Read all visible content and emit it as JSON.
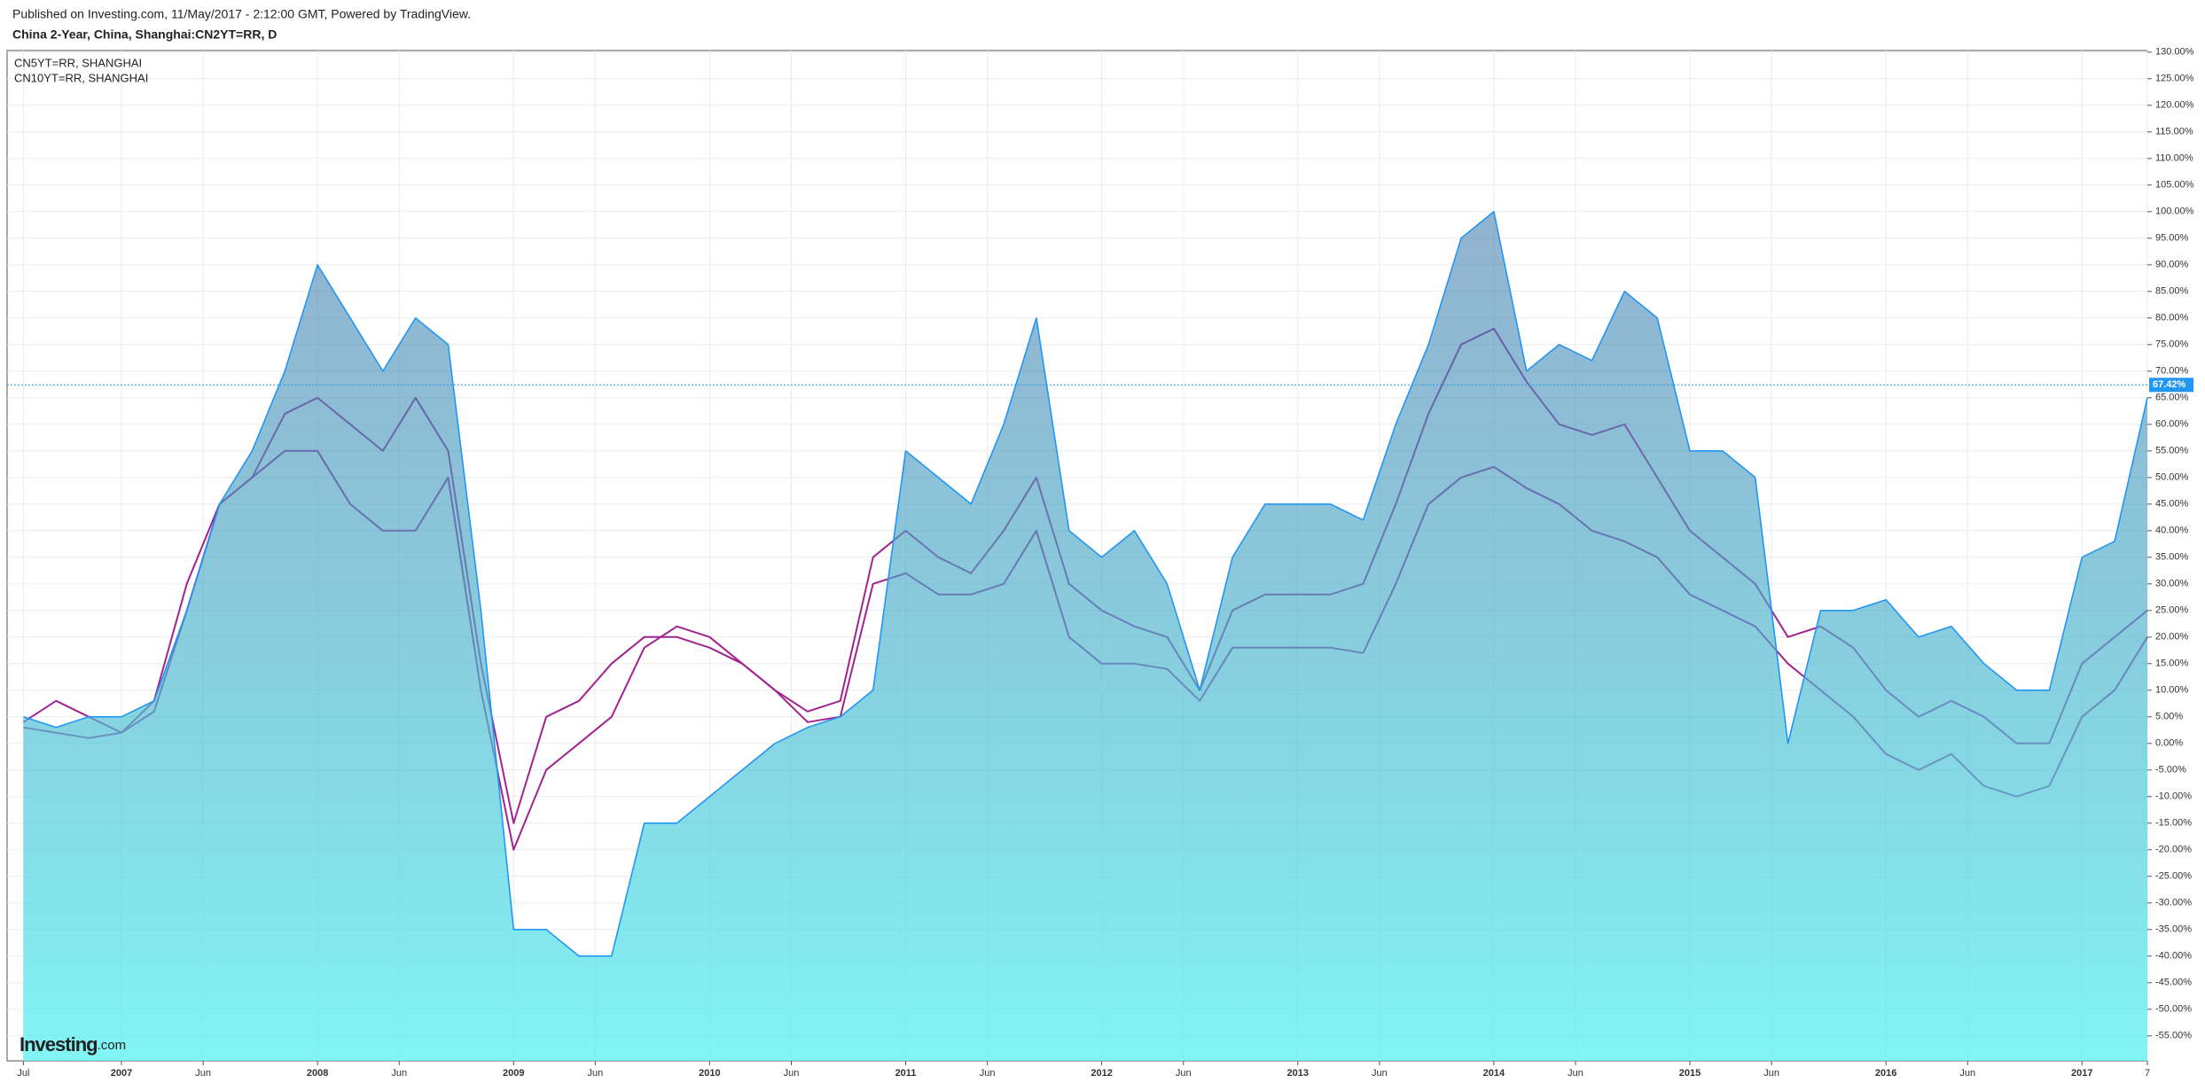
{
  "chart_data": {
    "type": "area",
    "source": "Published on Investing.com, 11/May/2017 - 2:12:00 GMT, Powered by TradingView.",
    "title": "China 2-Year, China, Shanghai:CN2YT=RR, D",
    "x": [
      "2006-07",
      "2006-09",
      "2006-11",
      "2007-01",
      "2007-03",
      "2007-05",
      "2007-07",
      "2007-09",
      "2007-11",
      "2008-01",
      "2008-03",
      "2008-05",
      "2008-07",
      "2008-09",
      "2008-11",
      "2009-01",
      "2009-03",
      "2009-05",
      "2009-07",
      "2009-09",
      "2009-11",
      "2010-01",
      "2010-03",
      "2010-05",
      "2010-07",
      "2010-09",
      "2010-11",
      "2011-01",
      "2011-03",
      "2011-05",
      "2011-07",
      "2011-09",
      "2011-11",
      "2012-01",
      "2012-03",
      "2012-05",
      "2012-07",
      "2012-09",
      "2012-11",
      "2013-01",
      "2013-03",
      "2013-05",
      "2013-07",
      "2013-09",
      "2013-11",
      "2014-01",
      "2014-03",
      "2014-05",
      "2014-07",
      "2014-09",
      "2014-11",
      "2015-01",
      "2015-03",
      "2015-05",
      "2015-07",
      "2015-09",
      "2015-11",
      "2016-01",
      "2016-03",
      "2016-05",
      "2016-07",
      "2016-09",
      "2016-11",
      "2017-01",
      "2017-03",
      "2017-05"
    ],
    "series": [
      {
        "color": "#2196f3",
        "values": [
          5,
          3,
          5,
          5,
          8,
          25,
          45,
          55,
          70,
          90,
          80,
          70,
          80,
          75,
          25,
          -35,
          -35,
          -40,
          -40,
          -15,
          -15,
          -10,
          -5,
          0,
          3,
          5,
          10,
          55,
          50,
          45,
          60,
          80,
          40,
          35,
          40,
          30,
          10,
          35,
          45,
          45,
          45,
          42,
          60,
          75,
          95,
          100,
          70,
          75,
          72,
          85,
          80,
          55,
          55,
          50,
          0,
          25,
          25,
          27,
          20,
          22,
          15,
          10,
          10,
          35,
          38,
          65
        ]
      },
      {
        "name": "CN5YT=RR, SHANGHAI",
        "color": "#a0248f",
        "values": [
          3,
          2,
          1,
          2,
          8,
          30,
          45,
          50,
          62,
          65,
          60,
          55,
          65,
          55,
          15,
          -15,
          5,
          8,
          15,
          20,
          20,
          18,
          15,
          10,
          6,
          8,
          35,
          40,
          35,
          32,
          40,
          50,
          30,
          25,
          22,
          20,
          10,
          25,
          28,
          28,
          28,
          30,
          45,
          62,
          75,
          78,
          68,
          60,
          58,
          60,
          50,
          40,
          35,
          30,
          20,
          22,
          18,
          10,
          5,
          8,
          5,
          0,
          0,
          15,
          20,
          25
        ]
      },
      {
        "name": "CN10YT=RR, SHANGHAI",
        "color": "#a0248f",
        "values": [
          4,
          8,
          5,
          2,
          6,
          25,
          45,
          50,
          55,
          55,
          45,
          40,
          40,
          50,
          10,
          -20,
          -5,
          0,
          5,
          18,
          22,
          20,
          15,
          10,
          4,
          5,
          30,
          32,
          28,
          28,
          30,
          40,
          20,
          15,
          15,
          14,
          8,
          18,
          18,
          18,
          18,
          17,
          30,
          45,
          50,
          52,
          48,
          45,
          40,
          38,
          35,
          28,
          25,
          22,
          15,
          10,
          5,
          -2,
          -5,
          -2,
          -8,
          -10,
          -8,
          5,
          10,
          20
        ]
      }
    ],
    "xlim": [
      "2006-06",
      "2017-05"
    ],
    "xticks": [
      {
        "value": "2006-07",
        "label": "Jul"
      },
      {
        "value": "2007-01",
        "label": "2007"
      },
      {
        "value": "2007-06",
        "label": "Jun"
      },
      {
        "value": "2008-01",
        "label": "2008"
      },
      {
        "value": "2008-06",
        "label": "Jun"
      },
      {
        "value": "2009-01",
        "label": "2009"
      },
      {
        "value": "2009-06",
        "label": "Jun"
      },
      {
        "value": "2010-01",
        "label": "2010"
      },
      {
        "value": "2010-06",
        "label": "Jun"
      },
      {
        "value": "2011-01",
        "label": "2011"
      },
      {
        "value": "2011-06",
        "label": "Jun"
      },
      {
        "value": "2012-01",
        "label": "2012"
      },
      {
        "value": "2012-06",
        "label": "Jun"
      },
      {
        "value": "2013-01",
        "label": "2013"
      },
      {
        "value": "2013-06",
        "label": "Jun"
      },
      {
        "value": "2014-01",
        "label": "2014"
      },
      {
        "value": "2014-06",
        "label": "Jun"
      },
      {
        "value": "2015-01",
        "label": "2015"
      },
      {
        "value": "2015-06",
        "label": "Jun"
      },
      {
        "value": "2016-01",
        "label": "2016"
      },
      {
        "value": "2016-06",
        "label": "Jun"
      },
      {
        "value": "2017-01",
        "label": "2017"
      },
      {
        "value": "2017-05",
        "label": "7"
      }
    ],
    "ylim": [
      -59.7,
      130.3
    ],
    "yticks": [
      {
        "value": -55,
        "label": "-55.00%"
      },
      {
        "value": -50,
        "label": "-50.00%"
      },
      {
        "value": -45,
        "label": "-45.00%"
      },
      {
        "value": -40,
        "label": "-40.00%"
      },
      {
        "value": -35,
        "label": "-35.00%"
      },
      {
        "value": -30,
        "label": "-30.00%"
      },
      {
        "value": -25,
        "label": "-25.00%"
      },
      {
        "value": -20,
        "label": "-20.00%"
      },
      {
        "value": -15,
        "label": "-15.00%"
      },
      {
        "value": -10,
        "label": "-10.00%"
      },
      {
        "value": -5,
        "label": "-5.00%"
      },
      {
        "value": 0,
        "label": "0.00%"
      },
      {
        "value": 5,
        "label": "5.00%"
      },
      {
        "value": 10,
        "label": "10.00%"
      },
      {
        "value": 15,
        "label": "15.00%"
      },
      {
        "value": 20,
        "label": "20.00%"
      },
      {
        "value": 25,
        "label": "25.00%"
      },
      {
        "value": 30,
        "label": "30.00%"
      },
      {
        "value": 35,
        "label": "35.00%"
      },
      {
        "value": 40,
        "label": "40.00%"
      },
      {
        "value": 45,
        "label": "45.00%"
      },
      {
        "value": 50,
        "label": "50.00%"
      },
      {
        "value": 55,
        "label": "55.00%"
      },
      {
        "value": 60,
        "label": "60.00%"
      },
      {
        "value": 65,
        "label": "65.00%"
      },
      {
        "value": 70,
        "label": "70.00%"
      },
      {
        "value": 75,
        "label": "75.00%"
      },
      {
        "value": 80,
        "label": "80.00%"
      },
      {
        "value": 85,
        "label": "85.00%"
      },
      {
        "value": 90,
        "label": "90.00%"
      },
      {
        "value": 95,
        "label": "95.00%"
      },
      {
        "value": 100,
        "label": "100.00%"
      },
      {
        "value": 105,
        "label": "105.00%"
      },
      {
        "value": 110,
        "label": "110.00%"
      },
      {
        "value": 115,
        "label": "115.00%"
      },
      {
        "value": 120,
        "label": "120.00%"
      },
      {
        "value": 125,
        "label": "125.00%"
      },
      {
        "value": 130,
        "label": "130.00%"
      }
    ],
    "grid": true,
    "last_value": 67.42,
    "last_value_label": "67.42%"
  },
  "branding": {
    "name": "Investing",
    "suffix": ".com"
  }
}
